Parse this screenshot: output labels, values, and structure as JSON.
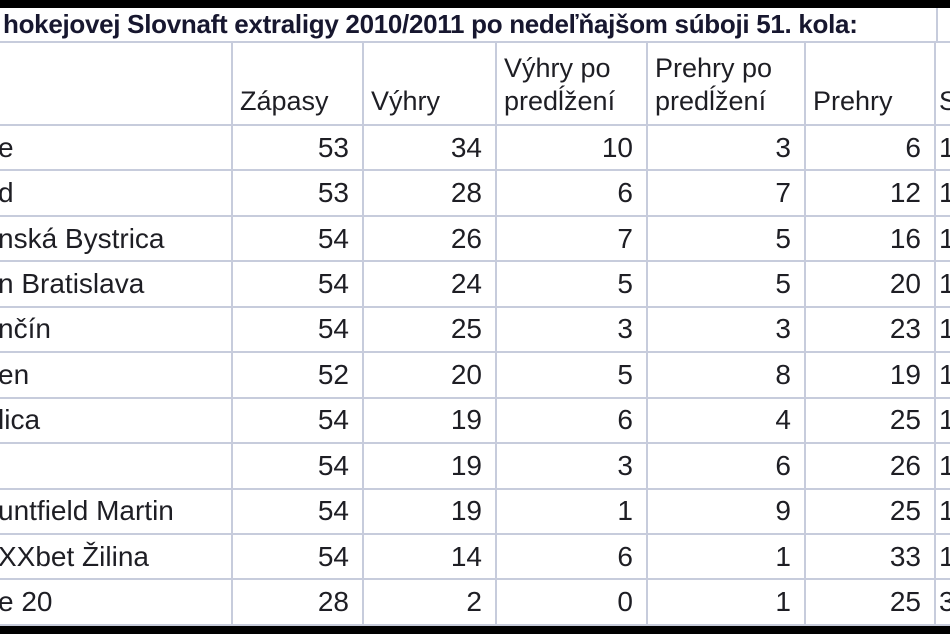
{
  "title": "hokejovej Slovnaft extraligy 2010/2011 po nedeľňajšom súboji 51. kola:",
  "table": {
    "headers": {
      "team": "",
      "zapasy": "Zápasy",
      "vyhry": "Výhry",
      "vyhry_po": "Výhry po predĺžení",
      "prehry_po": "Prehry po predĺžení",
      "prehry": "Prehry",
      "s": "S"
    },
    "rows": [
      {
        "team": "e",
        "zapasy": "53",
        "vyhry": "34",
        "vyhry_po": "10",
        "prehry_po": "3",
        "prehry": "6",
        "s": "1"
      },
      {
        "team": "d",
        "zapasy": "53",
        "vyhry": "28",
        "vyhry_po": "6",
        "prehry_po": "7",
        "prehry": "12",
        "s": "1"
      },
      {
        "team": "nská Bystrica",
        "zapasy": "54",
        "vyhry": "26",
        "vyhry_po": "7",
        "prehry_po": "5",
        "prehry": "16",
        "s": "1"
      },
      {
        "team": "n Bratislava",
        "zapasy": "54",
        "vyhry": "24",
        "vyhry_po": "5",
        "prehry_po": "5",
        "prehry": "20",
        "s": "1"
      },
      {
        "team": "nčín",
        "zapasy": "54",
        "vyhry": "25",
        "vyhry_po": "3",
        "prehry_po": "3",
        "prehry": "23",
        "s": "1"
      },
      {
        "team": "en",
        "zapasy": "52",
        "vyhry": "20",
        "vyhry_po": "5",
        "prehry_po": "8",
        "prehry": "19",
        "s": "1"
      },
      {
        "team": "lica",
        "zapasy": "54",
        "vyhry": "19",
        "vyhry_po": "6",
        "prehry_po": "4",
        "prehry": "25",
        "s": "1"
      },
      {
        "team": "",
        "zapasy": "54",
        "vyhry": "19",
        "vyhry_po": "3",
        "prehry_po": "6",
        "prehry": "26",
        "s": "1"
      },
      {
        "team": "untfield Martin",
        "zapasy": "54",
        "vyhry": "19",
        "vyhry_po": "1",
        "prehry_po": "9",
        "prehry": "25",
        "s": "1"
      },
      {
        "team": "XXbet Žilina",
        "zapasy": "54",
        "vyhry": "14",
        "vyhry_po": "6",
        "prehry_po": "1",
        "prehry": "33",
        "s": "1"
      },
      {
        "team": "e 20",
        "zapasy": "28",
        "vyhry": "2",
        "vyhry_po": "0",
        "prehry_po": "1",
        "prehry": "25",
        "s": "3"
      }
    ]
  },
  "colors": {
    "grid_line": "#c7ccdc",
    "text": "#1e1e24",
    "title_text": "#17172f",
    "letterbox_bar": "#000000",
    "background": "#ffffff"
  }
}
